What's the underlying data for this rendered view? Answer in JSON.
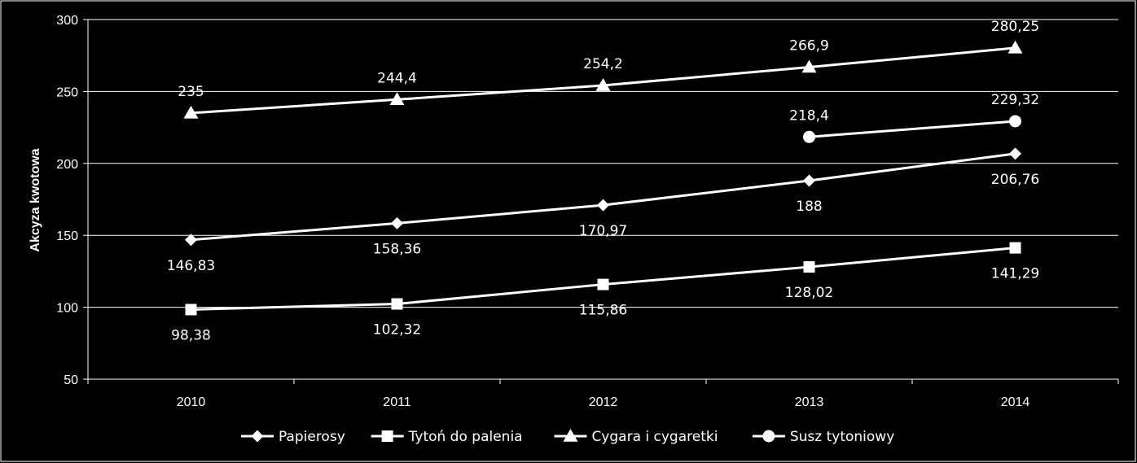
{
  "chart_data": {
    "type": "line",
    "title": "",
    "xlabel": "",
    "ylabel": "Akcyza kwotowa",
    "x": [
      "2010",
      "2011",
      "2012",
      "2013",
      "2014"
    ],
    "ylim": [
      50,
      300
    ],
    "yticks": [
      50,
      100,
      150,
      200,
      250,
      300
    ],
    "grid": true,
    "legend_position": "bottom",
    "series": [
      {
        "name": "Papierosy",
        "marker": "diamond",
        "values": [
          146.83,
          158.36,
          170.97,
          188,
          206.76
        ],
        "labels": [
          "146,83",
          "158,36",
          "170,97",
          "188",
          "206,76"
        ],
        "label_position": "below"
      },
      {
        "name": "Tytoń do palenia",
        "marker": "square",
        "values": [
          98.38,
          102.32,
          115.86,
          128.02,
          141.29
        ],
        "labels": [
          "98,38",
          "102,32",
          "115,86",
          "128,02",
          "141,29"
        ],
        "label_position": "below"
      },
      {
        "name": "Cygara i cygaretki",
        "marker": "triangle",
        "values": [
          235,
          244.4,
          254.2,
          266.9,
          280.25
        ],
        "labels": [
          "235",
          "244,4",
          "254,2",
          "266,9",
          "280,25"
        ],
        "label_position": "above"
      },
      {
        "name": "Susz tytoniowy",
        "marker": "circle",
        "values": [
          null,
          null,
          null,
          218.4,
          229.32
        ],
        "labels": [
          null,
          null,
          null,
          "218,4",
          "229,32"
        ],
        "label_position": "above"
      }
    ],
    "colors": {
      "background": "#000000",
      "line": "#ffffff",
      "grid": "#ffffff"
    }
  }
}
